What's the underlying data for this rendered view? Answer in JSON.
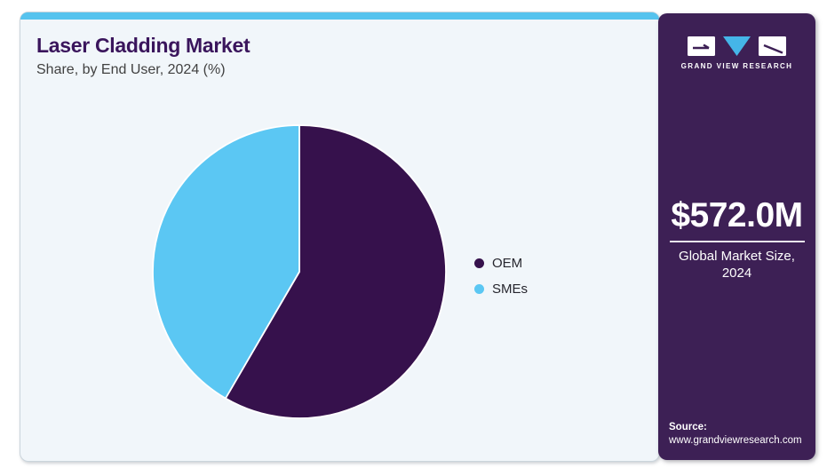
{
  "header": {
    "title": "Laser Cladding Market",
    "subtitle": "Share, by End User, 2024 (%)"
  },
  "chart_data": {
    "type": "pie",
    "title": "Laser Cladding Market Share, by End User, 2024 (%)",
    "labels": [
      "OEM",
      "SMEs"
    ],
    "values": [
      58.4,
      41.6
    ],
    "colors": [
      "#36114C",
      "#5BC7F3"
    ],
    "start_angle_deg": 0,
    "direction": "clockwise",
    "legend_position": "right",
    "background": "#F1F6FA"
  },
  "sidebar": {
    "brand": "GRAND VIEW RESEARCH",
    "stat": {
      "value": "$572.0M",
      "label": "Global Market Size, 2024"
    },
    "source": {
      "label": "Source:",
      "url": "www.grandviewresearch.com"
    }
  },
  "colors": {
    "brand_purple": "#3D2055",
    "accent_blue": "#56C3EE",
    "title_purple": "#3A155C",
    "card_background": "#F1F6FA"
  }
}
